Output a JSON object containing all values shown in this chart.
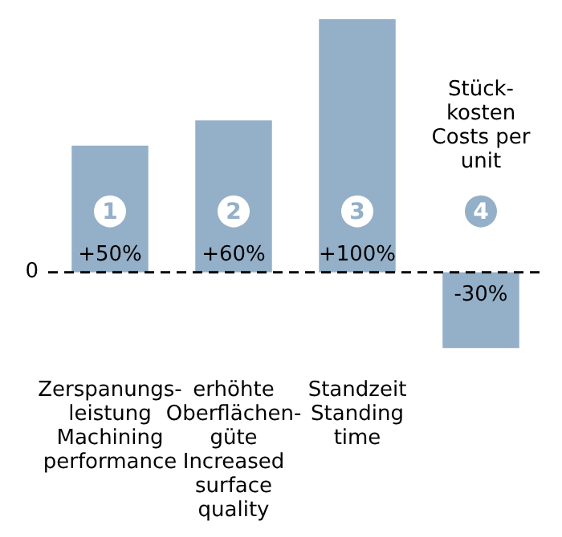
{
  "chart_data": {
    "type": "bar",
    "categories": [
      "Zerspanungs-\nleistung\nMachining\nperformance",
      "erhöhte\nOberflächen-\ngüte\nIncreased\nsurface\nquality",
      "Standzeit\nStanding\ntime",
      "Stück-\nkosten\nCosts per\nunit"
    ],
    "values": [
      50,
      60,
      100,
      -30
    ],
    "value_labels": [
      "+50%",
      "+60%",
      "+100%",
      "-30%"
    ],
    "color": "#94afc8",
    "annotations": [
      "1",
      "2",
      "3",
      "4"
    ],
    "ref_lines": [
      {
        "axis": "y",
        "value": 0,
        "label": "0",
        "color": "#000000",
        "line_style": "dashed"
      }
    ],
    "legend": false
  }
}
